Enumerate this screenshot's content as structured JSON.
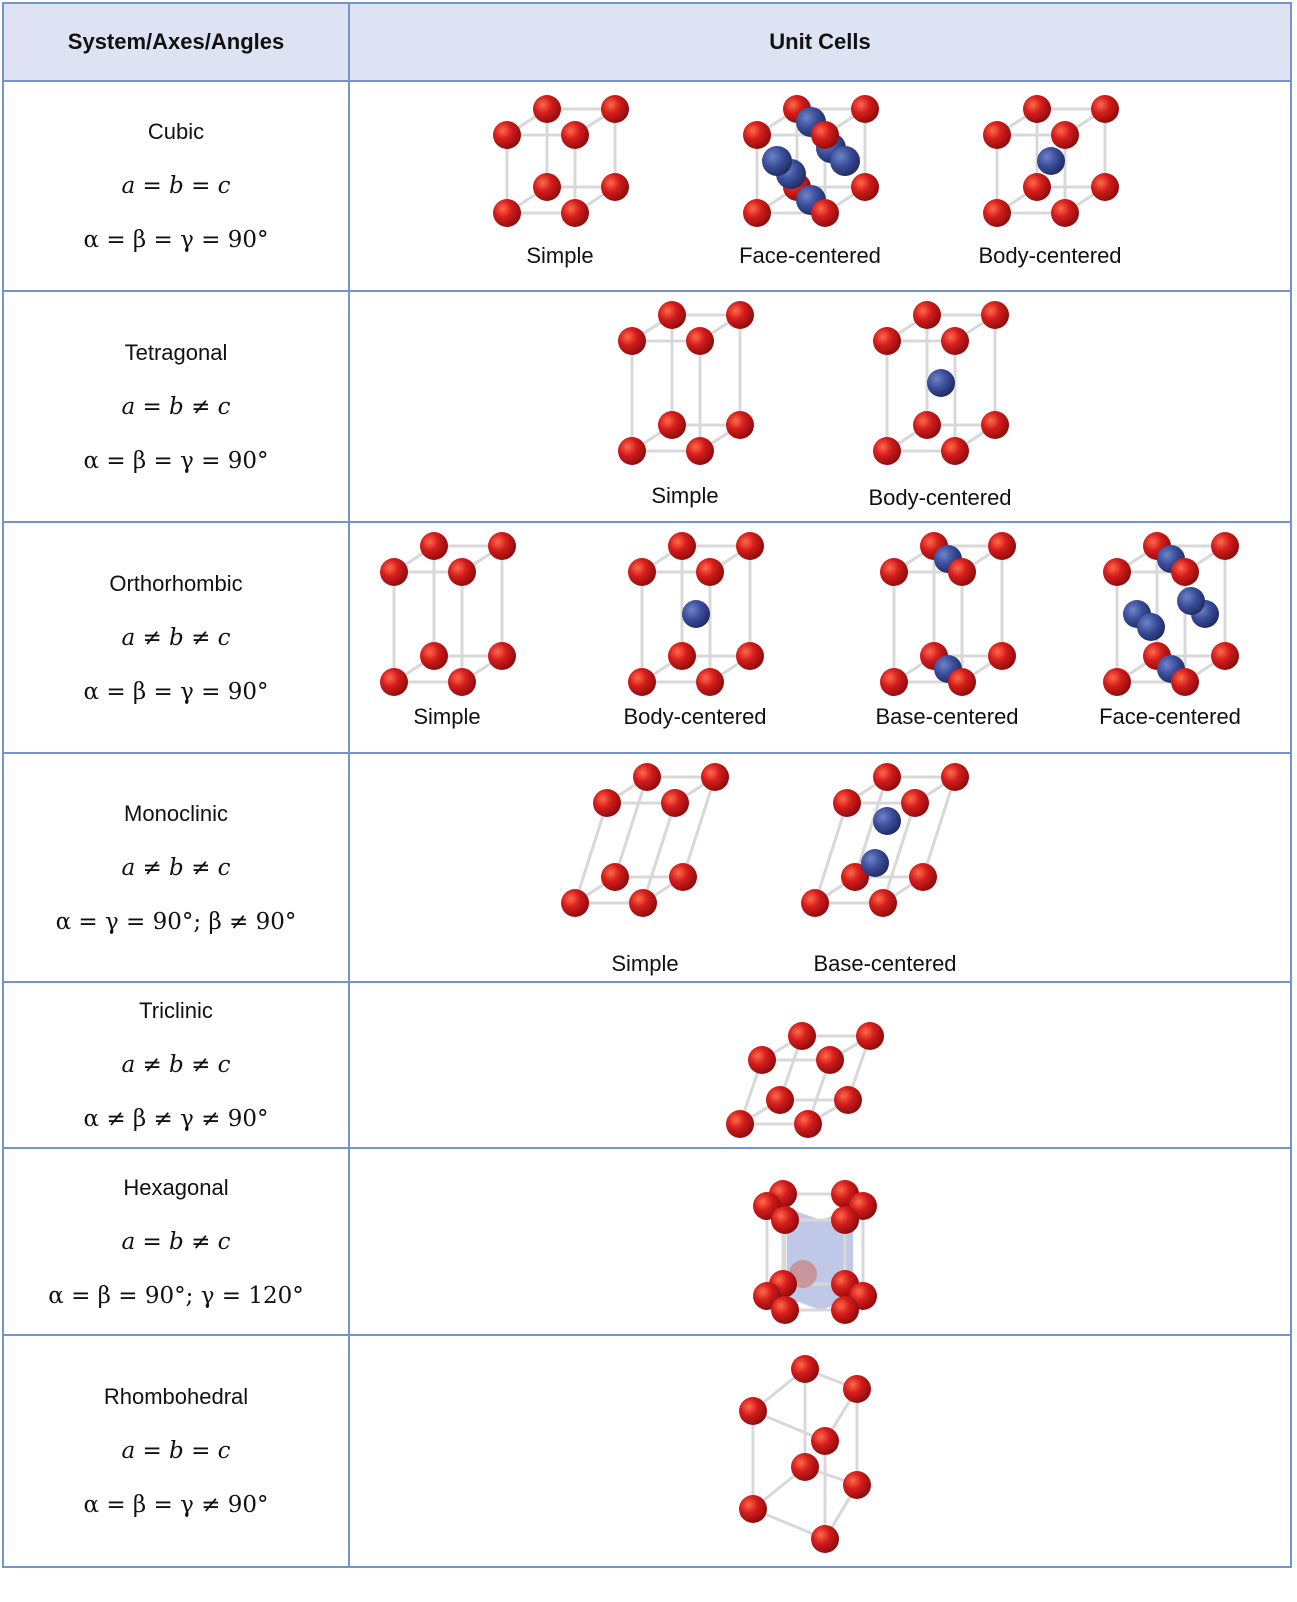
{
  "header": {
    "col1": "System/Axes/Angles",
    "col2": "Unit Cells"
  },
  "rows": [
    {
      "system": "Cubic",
      "axes": "a = b = c",
      "angles": "α = β = γ = 90°",
      "cells": [
        {
          "label": "Simple",
          "type": "simple-cubic"
        },
        {
          "label": "Face-centered",
          "type": "fcc"
        },
        {
          "label": "Body-centered",
          "type": "bcc"
        }
      ]
    },
    {
      "system": "Tetragonal",
      "axes": "a = b ≠ c",
      "angles": "α = β = γ = 90°",
      "cells": [
        {
          "label": "Simple",
          "type": "simple-tetragonal"
        },
        {
          "label": "Body-centered",
          "type": "bc-tetragonal"
        }
      ]
    },
    {
      "system": "Orthorhombic",
      "axes": "a ≠ b ≠ c",
      "angles": "α = β = γ = 90°",
      "cells": [
        {
          "label": "Simple",
          "type": "simple-ortho"
        },
        {
          "label": "Body-centered",
          "type": "bc-ortho"
        },
        {
          "label": "Base-centered",
          "type": "base-ortho"
        },
        {
          "label": "Face-centered",
          "type": "fc-ortho"
        }
      ]
    },
    {
      "system": "Monoclinic",
      "axes": "a ≠ b ≠ c",
      "angles": "α =  γ = 90°; β ≠ 90°",
      "cells": [
        {
          "label": "Simple",
          "type": "simple-mono"
        },
        {
          "label": "Base-centered",
          "type": "base-mono"
        }
      ]
    },
    {
      "system": "Triclinic",
      "axes": "a ≠ b ≠ c",
      "angles": "α ≠ β ≠ γ ≠ 90°",
      "cells": [
        {
          "label": "",
          "type": "triclinic"
        }
      ]
    },
    {
      "system": "Hexagonal",
      "axes": "a = b ≠ c",
      "angles": "α = β = 90°; γ = 120°",
      "cells": [
        {
          "label": "",
          "type": "hexagonal"
        }
      ]
    },
    {
      "system": "Rhombohedral",
      "axes": "a = b = c",
      "angles": "α = β = γ ≠ 90°",
      "cells": [
        {
          "label": "",
          "type": "rhombohedral"
        }
      ]
    }
  ],
  "colors": {
    "border": "#7694cc",
    "header_bg": "#dde3f3",
    "atom_corner": "#d41c1c",
    "atom_center": "#3a4d9a",
    "bond": "#d8d8d8"
  }
}
